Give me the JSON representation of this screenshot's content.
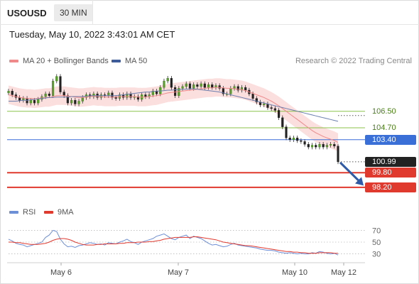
{
  "header": {
    "symbol": "USOUSD",
    "interval": "30 MIN"
  },
  "timestamp": "Tuesday, May 10, 2022 3:43:01 AM CET",
  "legend": {
    "ma20": {
      "label": "MA 20 + Bollinger Bands",
      "color": "#f08a8a"
    },
    "ma50": {
      "label": "MA 50",
      "color": "#3e5c9a"
    },
    "credit": "Research © 2022 Trading Central"
  },
  "levels": [
    {
      "label": "106.50",
      "value": 106.5,
      "kind": "resistance",
      "color": "#8bc34a",
      "style": "text"
    },
    {
      "label": "104.70",
      "value": 104.7,
      "kind": "resistance",
      "color": "#8bc34a",
      "style": "text"
    },
    {
      "label": "103.40",
      "value": 103.4,
      "kind": "pivot",
      "color": "#3a6fd8",
      "style": "tag"
    },
    {
      "label": "100.99",
      "value": 100.99,
      "kind": "last",
      "color": "#222222",
      "style": "tag"
    },
    {
      "label": "99.80",
      "value": 99.8,
      "kind": "support",
      "color": "#e03a2f",
      "style": "tag"
    },
    {
      "label": "98.20",
      "value": 98.2,
      "kind": "support",
      "color": "#e03a2f",
      "style": "tag"
    }
  ],
  "rsi_legend": {
    "rsi": {
      "label": "RSI",
      "color": "#6d8fd8"
    },
    "ma9": {
      "label": "9MA",
      "color": "#e03a2f"
    }
  },
  "chart_data": [
    {
      "type": "candlestick",
      "title": "USOUSD",
      "x_ticks": [
        "May 6",
        "May 7",
        "May 10",
        "May 12"
      ],
      "ylim": [
        96.8,
        111.2
      ],
      "close": [
        108.7,
        108.3,
        108.0,
        107.7,
        107.9,
        107.4,
        107.7,
        107.4,
        107.8,
        108.1,
        108.4,
        108.2,
        109.8,
        110.3,
        108.6,
        108.2,
        107.4,
        107.7,
        107.3,
        107.6,
        108.0,
        108.3,
        108.1,
        108.4,
        108.0,
        108.3,
        108.2,
        108.5,
        108.0,
        107.9,
        108.3,
        108.0,
        108.4,
        108.0,
        108.1,
        107.8,
        108.3,
        108.1,
        108.3,
        108.7,
        108.4,
        109.1,
        109.8,
        110.1,
        109.1,
        108.2,
        109.0,
        109.2,
        109.5,
        109.0,
        109.4,
        109.2,
        109.5,
        109.1,
        109.4,
        109.1,
        109.3,
        109.0,
        108.4,
        108.4,
        109.0,
        109.2,
        108.8,
        109.1,
        108.8,
        108.4,
        107.9,
        107.5,
        107.2,
        107.3,
        106.9,
        106.8,
        106.6,
        105.8,
        104.8,
        103.6,
        103.4,
        103.6,
        103.3,
        103.2,
        102.9,
        102.6,
        102.8,
        102.6,
        102.9,
        102.6,
        102.8,
        102.9,
        102.7,
        100.99
      ],
      "ma20": [
        108.3,
        108.2,
        108.1,
        108.0,
        107.95,
        107.9,
        107.9,
        107.85,
        107.9,
        107.95,
        108.0,
        108.0,
        108.1,
        108.2,
        108.2,
        108.2,
        108.15,
        108.1,
        108.05,
        108.0,
        108.0,
        108.05,
        108.1,
        108.15,
        108.1,
        108.1,
        108.05,
        108.05,
        108.05,
        108.05,
        108.1,
        108.1,
        108.1,
        108.1,
        108.1,
        108.05,
        108.05,
        108.05,
        108.1,
        108.15,
        108.2,
        108.3,
        108.4,
        108.5,
        108.55,
        108.6,
        108.65,
        108.7,
        108.75,
        108.8,
        108.85,
        108.9,
        108.95,
        109.0,
        109.05,
        109.05,
        109.1,
        109.1,
        109.05,
        109.0,
        109.0,
        108.95,
        108.9,
        108.85,
        108.75,
        108.6,
        108.45,
        108.3,
        108.15,
        108.0,
        107.8,
        107.6,
        107.35,
        107.1,
        106.8,
        106.5,
        106.2,
        105.9,
        105.6,
        105.3,
        105.0,
        104.7,
        104.4,
        104.15,
        103.95,
        103.75,
        103.6,
        103.45,
        103.3,
        103.1
      ],
      "ma50": [
        107.6,
        107.6,
        107.6,
        107.65,
        107.7,
        107.7,
        107.75,
        107.8,
        107.85,
        107.9,
        107.95,
        108.0,
        108.0,
        108.05,
        108.05,
        108.05,
        108.05,
        108.1,
        108.1,
        108.1,
        108.1,
        108.15,
        108.2,
        108.2,
        108.2,
        108.2,
        108.2,
        108.2,
        108.2,
        108.2,
        108.25,
        108.3,
        108.35,
        108.4,
        108.45,
        108.5,
        108.55,
        108.6,
        108.6,
        108.65,
        108.7,
        108.7,
        108.75,
        108.8,
        108.8,
        108.85,
        108.85,
        108.9,
        108.9,
        108.95,
        108.95,
        108.9,
        108.85,
        108.8,
        108.75,
        108.7,
        108.65,
        108.6,
        108.5,
        108.4,
        108.3,
        108.2,
        108.1,
        108.0,
        107.9,
        107.8,
        107.7,
        107.6,
        107.5,
        107.4,
        107.3,
        107.2,
        107.1,
        107.0,
        106.9,
        106.8,
        106.7,
        106.6,
        106.5,
        106.4,
        106.3,
        106.2,
        106.1,
        106.0,
        105.9,
        105.8,
        105.7,
        105.6,
        105.5,
        105.4
      ]
    },
    {
      "type": "line",
      "title": "RSI",
      "ylim": [
        15,
        85
      ],
      "yticks": [
        70,
        50,
        30
      ],
      "series": [
        {
          "name": "RSI",
          "values": [
            55,
            52,
            48,
            46,
            45,
            42,
            44,
            46,
            48,
            50,
            58,
            62,
            70,
            68,
            55,
            47,
            42,
            43,
            41,
            44,
            45,
            47,
            49,
            48,
            46,
            47,
            45,
            49,
            48,
            47,
            50,
            52,
            55,
            51,
            49,
            46,
            50,
            52,
            54,
            56,
            60,
            62,
            64,
            60,
            56,
            54,
            58,
            60,
            62,
            56,
            60,
            58,
            56,
            52,
            48,
            45,
            46,
            44,
            42,
            43,
            46,
            48,
            45,
            44,
            43,
            42,
            41,
            40,
            38,
            37,
            36,
            36,
            35,
            33,
            32,
            31,
            32,
            31,
            30,
            31,
            30,
            30,
            32,
            31,
            34,
            33,
            31,
            30,
            31,
            28
          ]
        },
        {
          "name": "9MA",
          "values": [
            50,
            50,
            49,
            49,
            48,
            47,
            46,
            46,
            46,
            47,
            48,
            50,
            53,
            55,
            56,
            56,
            55,
            53,
            50,
            48,
            46,
            45,
            45,
            45,
            46,
            46,
            47,
            47,
            47,
            47,
            48,
            48,
            49,
            49,
            49,
            50,
            50,
            50,
            51,
            51,
            52,
            53,
            55,
            56,
            57,
            58,
            58,
            58,
            58,
            58,
            59,
            59,
            58,
            57,
            56,
            55,
            54,
            52,
            50,
            49,
            48,
            47,
            46,
            45,
            44,
            44,
            43,
            42,
            41,
            40,
            39,
            38,
            37,
            36,
            35,
            34,
            34,
            33,
            33,
            32,
            32,
            31,
            31,
            31,
            32,
            32,
            32,
            32,
            31,
            31
          ]
        }
      ]
    }
  ]
}
